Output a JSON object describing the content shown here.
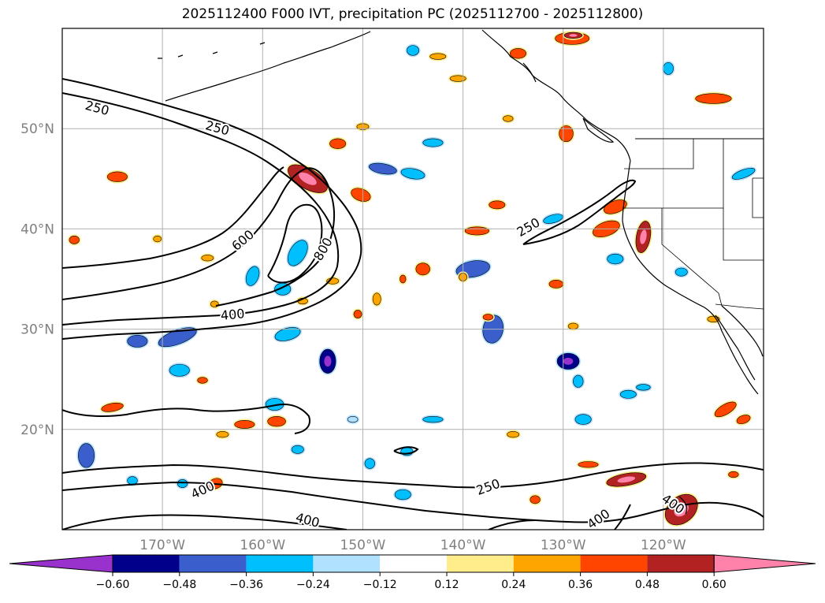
{
  "title": "2025112400 F000 IVT, precipitation PC (2025112700 - 2025112800)",
  "map": {
    "projection": "equirectangular",
    "lon_range": [
      -180,
      -110
    ],
    "lat_range": [
      10,
      60
    ],
    "lat_gridlines": [
      20,
      30,
      40,
      50
    ],
    "lon_gridlines": [
      -170,
      -160,
      -150,
      -140,
      -130,
      -120
    ],
    "lat_labels": [
      "20°N",
      "30°N",
      "40°N",
      "50°N"
    ],
    "lon_labels": [
      "170°W",
      "160°W",
      "150°W",
      "140°W",
      "130°W",
      "120°W"
    ],
    "gridline_color": "#b0b0b0",
    "label_color": "#808080"
  },
  "ivt_contours": {
    "levels": [
      250,
      400,
      600,
      800
    ],
    "labels": [
      {
        "text": "250",
        "lon": -176.5,
        "lat": 52.1,
        "angle": 15
      },
      {
        "text": "250",
        "lon": -164.5,
        "lat": 50.1,
        "angle": 15
      },
      {
        "text": "600",
        "lon": -162.0,
        "lat": 38.9,
        "angle": -40
      },
      {
        "text": "800",
        "lon": -154.0,
        "lat": 38.0,
        "angle": -60
      },
      {
        "text": "400",
        "lon": -163.0,
        "lat": 31.5,
        "angle": -5
      },
      {
        "text": "250",
        "lon": -133.5,
        "lat": 40.2,
        "angle": -30
      },
      {
        "text": "400",
        "lon": -166.0,
        "lat": 14.0,
        "angle": -25
      },
      {
        "text": "400",
        "lon": -155.5,
        "lat": 11.0,
        "angle": 15
      },
      {
        "text": "250",
        "lon": -137.5,
        "lat": 14.3,
        "angle": -20
      },
      {
        "text": "400",
        "lon": -126.5,
        "lat": 11.1,
        "angle": -35
      },
      {
        "text": "400",
        "lon": -119.0,
        "lat": 12.6,
        "angle": 35
      }
    ]
  },
  "colorbar": {
    "ticks": [
      "−0.60",
      "−0.48",
      "−0.36",
      "−0.24",
      "−0.12",
      "0.12",
      "0.24",
      "0.36",
      "0.48",
      "0.60"
    ],
    "colors": [
      "#9932cc",
      "#00008b",
      "#3a5fcd",
      "#00bfff",
      "#b0e2ff",
      "#ffffff",
      "#ffec8b",
      "#ffa500",
      "#ff4500",
      "#b22222",
      "#ff82ab"
    ]
  },
  "precip_pc_anomalies": [
    {
      "lon": -155.5,
      "lat": 45.0,
      "rx": 2.2,
      "ry": 1.0,
      "rot": 30,
      "bin": 9
    },
    {
      "lon": -150.2,
      "lat": 43.4,
      "rx": 1.0,
      "ry": 0.6,
      "rot": 20,
      "bin": 8
    },
    {
      "lon": -174.5,
      "lat": 45.2,
      "rx": 1.0,
      "ry": 0.5,
      "rot": 0,
      "bin": 8
    },
    {
      "lon": -152.5,
      "lat": 48.5,
      "rx": 0.8,
      "ry": 0.5,
      "rot": 0,
      "bin": 8
    },
    {
      "lon": -124.8,
      "lat": 42.2,
      "rx": 1.2,
      "ry": 0.6,
      "rot": -20,
      "bin": 8
    },
    {
      "lon": -122.0,
      "lat": 39.2,
      "rx": 0.7,
      "ry": 1.6,
      "rot": 10,
      "bin": 9
    },
    {
      "lon": -125.7,
      "lat": 40.0,
      "rx": 1.4,
      "ry": 0.7,
      "rot": -20,
      "bin": 8
    },
    {
      "lon": -115.0,
      "lat": 53.0,
      "rx": 1.8,
      "ry": 0.5,
      "rot": 0,
      "bin": 8
    },
    {
      "lon": -129.7,
      "lat": 49.5,
      "rx": 0.7,
      "ry": 0.8,
      "rot": 0,
      "bin": 8
    },
    {
      "lon": -138.6,
      "lat": 39.8,
      "rx": 1.2,
      "ry": 0.4,
      "rot": 0,
      "bin": 8
    },
    {
      "lon": -136.6,
      "lat": 42.4,
      "rx": 0.8,
      "ry": 0.4,
      "rot": 0,
      "bin": 8
    },
    {
      "lon": -144.0,
      "lat": 36.0,
      "rx": 0.7,
      "ry": 0.6,
      "rot": 0,
      "bin": 8
    },
    {
      "lon": -130.7,
      "lat": 34.5,
      "rx": 0.7,
      "ry": 0.4,
      "rot": 0,
      "bin": 8
    },
    {
      "lon": -123.7,
      "lat": 15.0,
      "rx": 2.0,
      "ry": 0.6,
      "rot": -10,
      "bin": 9
    },
    {
      "lon": -118.2,
      "lat": 12.0,
      "rx": 1.8,
      "ry": 1.3,
      "rot": -40,
      "bin": 9
    },
    {
      "lon": -113.8,
      "lat": 22.0,
      "rx": 1.2,
      "ry": 0.5,
      "rot": -30,
      "bin": 8
    },
    {
      "lon": -112.0,
      "lat": 21.0,
      "rx": 0.7,
      "ry": 0.4,
      "rot": -20,
      "bin": 8
    },
    {
      "lon": -161.8,
      "lat": 20.5,
      "rx": 1.0,
      "ry": 0.4,
      "rot": 0,
      "bin": 8
    },
    {
      "lon": -158.6,
      "lat": 20.8,
      "rx": 0.9,
      "ry": 0.5,
      "rot": 0,
      "bin": 8
    },
    {
      "lon": -164.7,
      "lat": 14.6,
      "rx": 0.7,
      "ry": 0.5,
      "rot": -20,
      "bin": 8
    },
    {
      "lon": -175.0,
      "lat": 22.2,
      "rx": 1.1,
      "ry": 0.4,
      "rot": -10,
      "bin": 8
    },
    {
      "lon": -127.5,
      "lat": 16.5,
      "rx": 1.0,
      "ry": 0.3,
      "rot": 0,
      "bin": 8
    },
    {
      "lon": -132.8,
      "lat": 13.0,
      "rx": 0.5,
      "ry": 0.4,
      "rot": 0,
      "bin": 8
    },
    {
      "lon": -129.1,
      "lat": 59.0,
      "rx": 1.7,
      "ry": 0.6,
      "rot": 0,
      "bin": 8
    },
    {
      "lon": -129.0,
      "lat": 59.3,
      "rx": 0.9,
      "ry": 0.3,
      "rot": 0,
      "bin": 9
    },
    {
      "lon": -134.5,
      "lat": 57.5,
      "rx": 0.8,
      "ry": 0.5,
      "rot": 0,
      "bin": 8
    },
    {
      "lon": -148.0,
      "lat": 46.0,
      "rx": 1.4,
      "ry": 0.5,
      "rot": 10,
      "bin": 2
    },
    {
      "lon": -145.0,
      "lat": 45.5,
      "rx": 1.2,
      "ry": 0.5,
      "rot": 10,
      "bin": 3
    },
    {
      "lon": -143.0,
      "lat": 48.6,
      "rx": 1.0,
      "ry": 0.4,
      "rot": 0,
      "bin": 3
    },
    {
      "lon": -139.0,
      "lat": 36.0,
      "rx": 1.7,
      "ry": 0.8,
      "rot": -10,
      "bin": 2
    },
    {
      "lon": -137.0,
      "lat": 30.0,
      "rx": 1.0,
      "ry": 1.4,
      "rot": 10,
      "bin": 2
    },
    {
      "lon": -129.5,
      "lat": 26.8,
      "rx": 1.1,
      "ry": 0.8,
      "rot": 0,
      "bin": 1
    },
    {
      "lon": -153.5,
      "lat": 26.8,
      "rx": 0.8,
      "ry": 1.2,
      "rot": 0,
      "bin": 1
    },
    {
      "lon": -157.5,
      "lat": 29.5,
      "rx": 1.3,
      "ry": 0.6,
      "rot": -15,
      "bin": 3
    },
    {
      "lon": -168.5,
      "lat": 29.2,
      "rx": 2.0,
      "ry": 0.7,
      "rot": -20,
      "bin": 2
    },
    {
      "lon": -172.5,
      "lat": 28.8,
      "rx": 1.0,
      "ry": 0.6,
      "rot": 0,
      "bin": 2
    },
    {
      "lon": -168.3,
      "lat": 25.9,
      "rx": 1.0,
      "ry": 0.6,
      "rot": 0,
      "bin": 3
    },
    {
      "lon": -158.8,
      "lat": 22.5,
      "rx": 0.9,
      "ry": 0.6,
      "rot": 0,
      "bin": 3
    },
    {
      "lon": -161.0,
      "lat": 35.3,
      "rx": 0.6,
      "ry": 1.0,
      "rot": 20,
      "bin": 3
    },
    {
      "lon": -156.5,
      "lat": 37.6,
      "rx": 0.8,
      "ry": 1.4,
      "rot": 30,
      "bin": 3
    },
    {
      "lon": -158.0,
      "lat": 34.0,
      "rx": 0.8,
      "ry": 0.6,
      "rot": 0,
      "bin": 3
    },
    {
      "lon": -177.6,
      "lat": 17.4,
      "rx": 0.8,
      "ry": 1.2,
      "rot": 0,
      "bin": 2
    },
    {
      "lon": -131.0,
      "lat": 41.0,
      "rx": 1.0,
      "ry": 0.4,
      "rot": -15,
      "bin": 3
    },
    {
      "lon": -124.8,
      "lat": 37.0,
      "rx": 0.8,
      "ry": 0.5,
      "rot": 0,
      "bin": 3
    },
    {
      "lon": -128.5,
      "lat": 24.8,
      "rx": 0.5,
      "ry": 0.6,
      "rot": 0,
      "bin": 3
    },
    {
      "lon": -123.5,
      "lat": 23.5,
      "rx": 0.8,
      "ry": 0.4,
      "rot": 0,
      "bin": 3
    },
    {
      "lon": -128.0,
      "lat": 21.0,
      "rx": 0.8,
      "ry": 0.5,
      "rot": 0,
      "bin": 3
    },
    {
      "lon": -143.0,
      "lat": 21.0,
      "rx": 1.0,
      "ry": 0.3,
      "rot": 0,
      "bin": 3
    },
    {
      "lon": -151.0,
      "lat": 21.0,
      "rx": 0.5,
      "ry": 0.3,
      "rot": 0,
      "bin": 4
    },
    {
      "lon": -156.5,
      "lat": 18.0,
      "rx": 0.6,
      "ry": 0.4,
      "rot": 0,
      "bin": 3
    },
    {
      "lon": -145.6,
      "lat": 17.8,
      "rx": 0.6,
      "ry": 0.4,
      "rot": 0,
      "bin": 3
    },
    {
      "lon": -146.0,
      "lat": 13.5,
      "rx": 0.8,
      "ry": 0.5,
      "rot": 0,
      "bin": 3
    },
    {
      "lon": -149.3,
      "lat": 16.6,
      "rx": 0.5,
      "ry": 0.5,
      "rot": 0,
      "bin": 3
    },
    {
      "lon": -173.0,
      "lat": 14.9,
      "rx": 0.5,
      "ry": 0.4,
      "rot": 0,
      "bin": 3
    },
    {
      "lon": -168.0,
      "lat": 14.6,
      "rx": 0.5,
      "ry": 0.4,
      "rot": 0,
      "bin": 3
    },
    {
      "lon": -145.0,
      "lat": 57.8,
      "rx": 0.6,
      "ry": 0.5,
      "rot": 0,
      "bin": 3
    },
    {
      "lon": -119.5,
      "lat": 56.0,
      "rx": 0.5,
      "ry": 0.6,
      "rot": 0,
      "bin": 3
    },
    {
      "lon": -112.0,
      "lat": 45.5,
      "rx": 1.2,
      "ry": 0.4,
      "rot": -20,
      "bin": 3
    },
    {
      "lon": -118.2,
      "lat": 35.7,
      "rx": 0.6,
      "ry": 0.4,
      "rot": 0,
      "bin": 3
    },
    {
      "lon": -122.0,
      "lat": 24.2,
      "rx": 0.7,
      "ry": 0.3,
      "rot": 0,
      "bin": 3
    },
    {
      "lon": -140.5,
      "lat": 55.0,
      "rx": 0.8,
      "ry": 0.3,
      "rot": 0,
      "bin": 7
    },
    {
      "lon": -142.5,
      "lat": 57.2,
      "rx": 0.8,
      "ry": 0.3,
      "rot": 0,
      "bin": 7
    },
    {
      "lon": -150.0,
      "lat": 50.2,
      "rx": 0.6,
      "ry": 0.3,
      "rot": 0,
      "bin": 7
    },
    {
      "lon": -165.5,
      "lat": 37.1,
      "rx": 0.6,
      "ry": 0.3,
      "rot": 0,
      "bin": 7
    },
    {
      "lon": -170.5,
      "lat": 39.0,
      "rx": 0.4,
      "ry": 0.3,
      "rot": 0,
      "bin": 7
    },
    {
      "lon": -178.8,
      "lat": 38.9,
      "rx": 0.5,
      "ry": 0.4,
      "rot": 0,
      "bin": 8
    },
    {
      "lon": -164.8,
      "lat": 32.5,
      "rx": 0.4,
      "ry": 0.3,
      "rot": 0,
      "bin": 7
    },
    {
      "lon": -166.0,
      "lat": 24.9,
      "rx": 0.5,
      "ry": 0.3,
      "rot": 0,
      "bin": 8
    },
    {
      "lon": -148.6,
      "lat": 33.0,
      "rx": 0.4,
      "ry": 0.6,
      "rot": 0,
      "bin": 7
    },
    {
      "lon": -146.0,
      "lat": 35.0,
      "rx": 0.3,
      "ry": 0.4,
      "rot": 0,
      "bin": 8
    },
    {
      "lon": -150.5,
      "lat": 31.5,
      "rx": 0.4,
      "ry": 0.4,
      "rot": 0,
      "bin": 8
    },
    {
      "lon": -140.0,
      "lat": 35.2,
      "rx": 0.4,
      "ry": 0.4,
      "rot": 0,
      "bin": 7
    },
    {
      "lon": -129.0,
      "lat": 30.3,
      "rx": 0.5,
      "ry": 0.3,
      "rot": 0,
      "bin": 7
    },
    {
      "lon": -135.0,
      "lat": 19.5,
      "rx": 0.6,
      "ry": 0.3,
      "rot": 0,
      "bin": 7
    },
    {
      "lon": -164.0,
      "lat": 19.5,
      "rx": 0.6,
      "ry": 0.3,
      "rot": 0,
      "bin": 7
    },
    {
      "lon": -113.0,
      "lat": 15.5,
      "rx": 0.5,
      "ry": 0.3,
      "rot": 0,
      "bin": 8
    },
    {
      "lon": -115.0,
      "lat": 31.0,
      "rx": 0.6,
      "ry": 0.3,
      "rot": 0,
      "bin": 7
    },
    {
      "lon": -135.5,
      "lat": 51.0,
      "rx": 0.5,
      "ry": 0.3,
      "rot": 0,
      "bin": 7
    },
    {
      "lon": -137.5,
      "lat": 31.2,
      "rx": 0.5,
      "ry": 0.3,
      "rot": 0,
      "bin": 8
    },
    {
      "lon": -156.0,
      "lat": 32.8,
      "rx": 0.5,
      "ry": 0.3,
      "rot": 0,
      "bin": 7
    },
    {
      "lon": -153.0,
      "lat": 34.8,
      "rx": 0.6,
      "ry": 0.3,
      "rot": 0,
      "bin": 7
    }
  ]
}
